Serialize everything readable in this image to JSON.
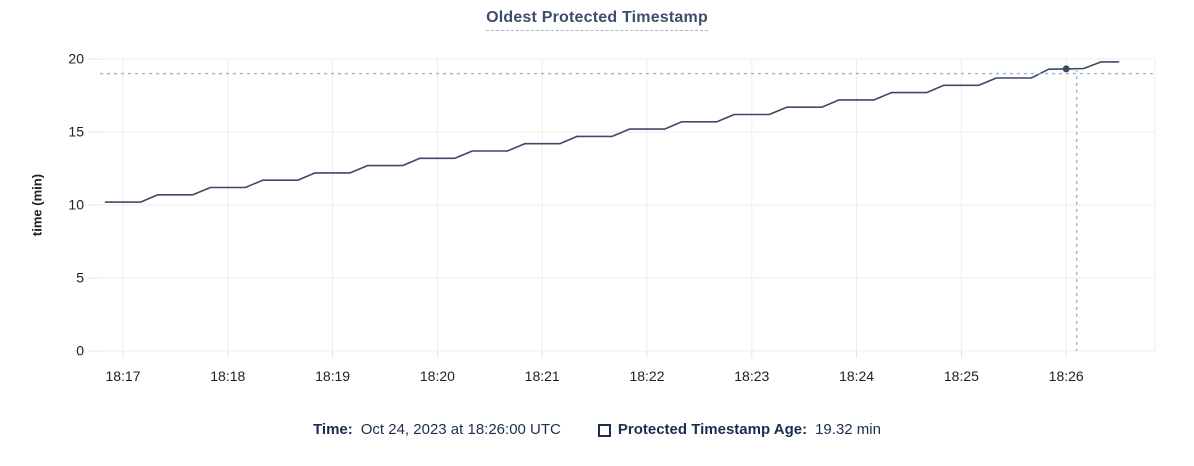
{
  "chart_data": {
    "type": "line",
    "title": "Oldest Protected Timestamp",
    "xlabel": "",
    "ylabel": "time (min)",
    "ylim": [
      0,
      20
    ],
    "yticks": [
      0,
      5,
      10,
      15,
      20
    ],
    "xticks": [
      "18:17",
      "18:18",
      "18:19",
      "18:20",
      "18:21",
      "18:22",
      "18:23",
      "18:24",
      "18:25",
      "18:26"
    ],
    "x_domain": [
      "18:16:47",
      "18:26:51"
    ],
    "grid": true,
    "legend_position": "bottom",
    "series": [
      {
        "name": "Protected Timestamp Age",
        "unit": "min",
        "points": [
          [
            "18:16:50",
            10.2
          ],
          [
            "18:17:00",
            10.2
          ],
          [
            "18:17:10",
            10.2
          ],
          [
            "18:17:20",
            10.7
          ],
          [
            "18:17:30",
            10.7
          ],
          [
            "18:17:40",
            10.7
          ],
          [
            "18:17:50",
            11.2
          ],
          [
            "18:18:00",
            11.2
          ],
          [
            "18:18:10",
            11.2
          ],
          [
            "18:18:20",
            11.7
          ],
          [
            "18:18:30",
            11.7
          ],
          [
            "18:18:40",
            11.7
          ],
          [
            "18:18:50",
            12.2
          ],
          [
            "18:19:00",
            12.2
          ],
          [
            "18:19:10",
            12.2
          ],
          [
            "18:19:20",
            12.7
          ],
          [
            "18:19:30",
            12.7
          ],
          [
            "18:19:40",
            12.7
          ],
          [
            "18:19:50",
            13.2
          ],
          [
            "18:20:00",
            13.2
          ],
          [
            "18:20:10",
            13.2
          ],
          [
            "18:20:20",
            13.7
          ],
          [
            "18:20:30",
            13.7
          ],
          [
            "18:20:40",
            13.7
          ],
          [
            "18:20:50",
            14.2
          ],
          [
            "18:21:00",
            14.2
          ],
          [
            "18:21:10",
            14.2
          ],
          [
            "18:21:20",
            14.7
          ],
          [
            "18:21:30",
            14.7
          ],
          [
            "18:21:40",
            14.7
          ],
          [
            "18:21:50",
            15.2
          ],
          [
            "18:22:00",
            15.2
          ],
          [
            "18:22:10",
            15.2
          ],
          [
            "18:22:20",
            15.7
          ],
          [
            "18:22:30",
            15.7
          ],
          [
            "18:22:40",
            15.7
          ],
          [
            "18:22:50",
            16.2
          ],
          [
            "18:23:00",
            16.2
          ],
          [
            "18:23:10",
            16.2
          ],
          [
            "18:23:20",
            16.7
          ],
          [
            "18:23:30",
            16.7
          ],
          [
            "18:23:40",
            16.7
          ],
          [
            "18:23:50",
            17.2
          ],
          [
            "18:24:00",
            17.2
          ],
          [
            "18:24:10",
            17.2
          ],
          [
            "18:24:20",
            17.7
          ],
          [
            "18:24:30",
            17.7
          ],
          [
            "18:24:40",
            17.7
          ],
          [
            "18:24:50",
            18.2
          ],
          [
            "18:25:00",
            18.2
          ],
          [
            "18:25:10",
            18.2
          ],
          [
            "18:25:20",
            18.7
          ],
          [
            "18:25:30",
            18.7
          ],
          [
            "18:25:40",
            18.7
          ],
          [
            "18:25:50",
            19.3
          ],
          [
            "18:26:00",
            19.32
          ],
          [
            "18:26:10",
            19.35
          ],
          [
            "18:26:20",
            19.8
          ],
          [
            "18:26:30",
            19.8
          ]
        ]
      }
    ]
  },
  "hover": {
    "point": {
      "time": "18:26:00",
      "value": 19.32
    },
    "crosshair": {
      "time": "18:26:06",
      "value": 19.0
    }
  },
  "legend": {
    "time_label": "Time:",
    "time_value": "Oct 24, 2023 at 18:26:00 UTC",
    "series_label": "Protected Timestamp Age:",
    "series_value": "19.32 min"
  },
  "colors": {
    "line": "#3b4a66",
    "point": "#3b4a66",
    "crosshair": "#a0b4c1",
    "grid": "#ededed",
    "tick": "#e4e4e4",
    "title_text": "#3d4d6b",
    "axis_text": "#212121",
    "legend_text": "#1b2d51",
    "background": "#ffffff"
  }
}
